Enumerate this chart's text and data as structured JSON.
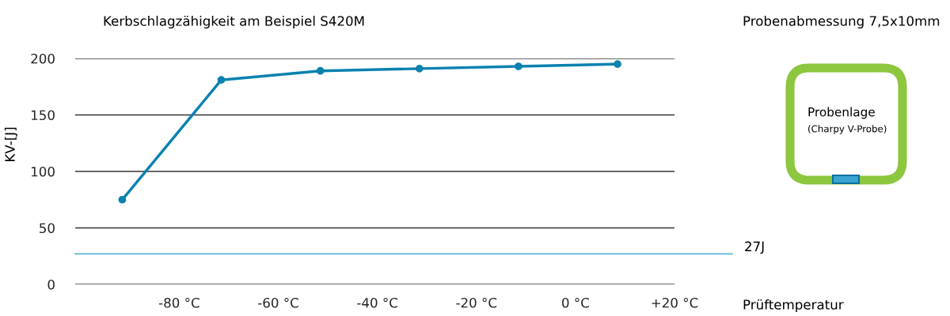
{
  "chart_data": {
    "type": "line",
    "title": "Kerbschlagzähigkeit am Beispiel S420M",
    "xlabel": "Prüftemperatur",
    "ylabel": "KV-[J]",
    "x": [
      -91.5,
      -71.5,
      -51.5,
      -31.5,
      -11.5,
      8.5
    ],
    "series": [
      {
        "color": "#0a82b0",
        "values": [
          75,
          181,
          189,
          191,
          193,
          195
        ]
      }
    ],
    "xlim": [
      -101,
      20
    ],
    "xticks": [
      {
        "value": -80,
        "label": "-80 °C"
      },
      {
        "value": -60,
        "label": "-60 °C"
      },
      {
        "value": -40,
        "label": "-40 °C"
      },
      {
        "value": -20,
        "label": "-20 °C"
      },
      {
        "value": 0,
        "label": "0 °C"
      },
      {
        "value": 20,
        "label": "+20 °C"
      }
    ],
    "ylim": [
      0,
      200
    ],
    "yticks": [
      0,
      50,
      100,
      150,
      200
    ],
    "grid": "y",
    "marker": "circle",
    "line_style": "solid",
    "ref_lines": [
      {
        "axis": "y",
        "value": 27,
        "label": "27J",
        "color": "#5ab4d2"
      }
    ],
    "annotations": [
      "Probenabmessung 7,5x10mm",
      "Probenlage",
      "(Charpy V-Probe)"
    ]
  }
}
